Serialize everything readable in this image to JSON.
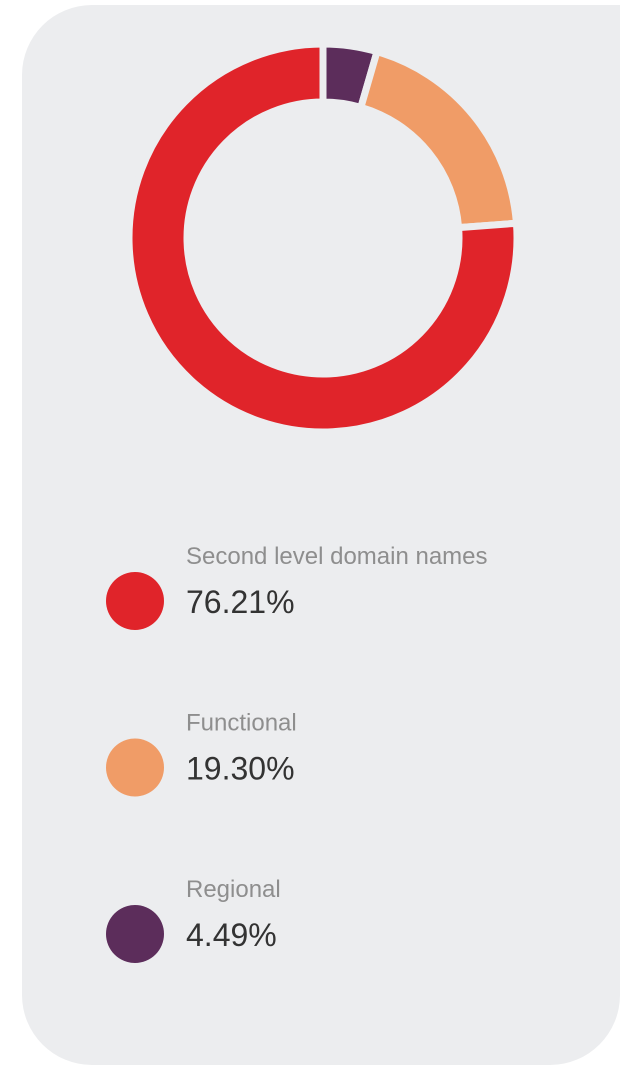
{
  "chart_data": {
    "type": "donut",
    "categories": [
      "Second level domain names",
      "Functional",
      "Regional"
    ],
    "values": [
      76.21,
      19.3,
      4.49
    ],
    "value_labels": [
      "76.21%",
      "19.30%",
      "4.49%"
    ],
    "colors": [
      "#e0242a",
      "#f09c67",
      "#5c2d5b"
    ]
  }
}
